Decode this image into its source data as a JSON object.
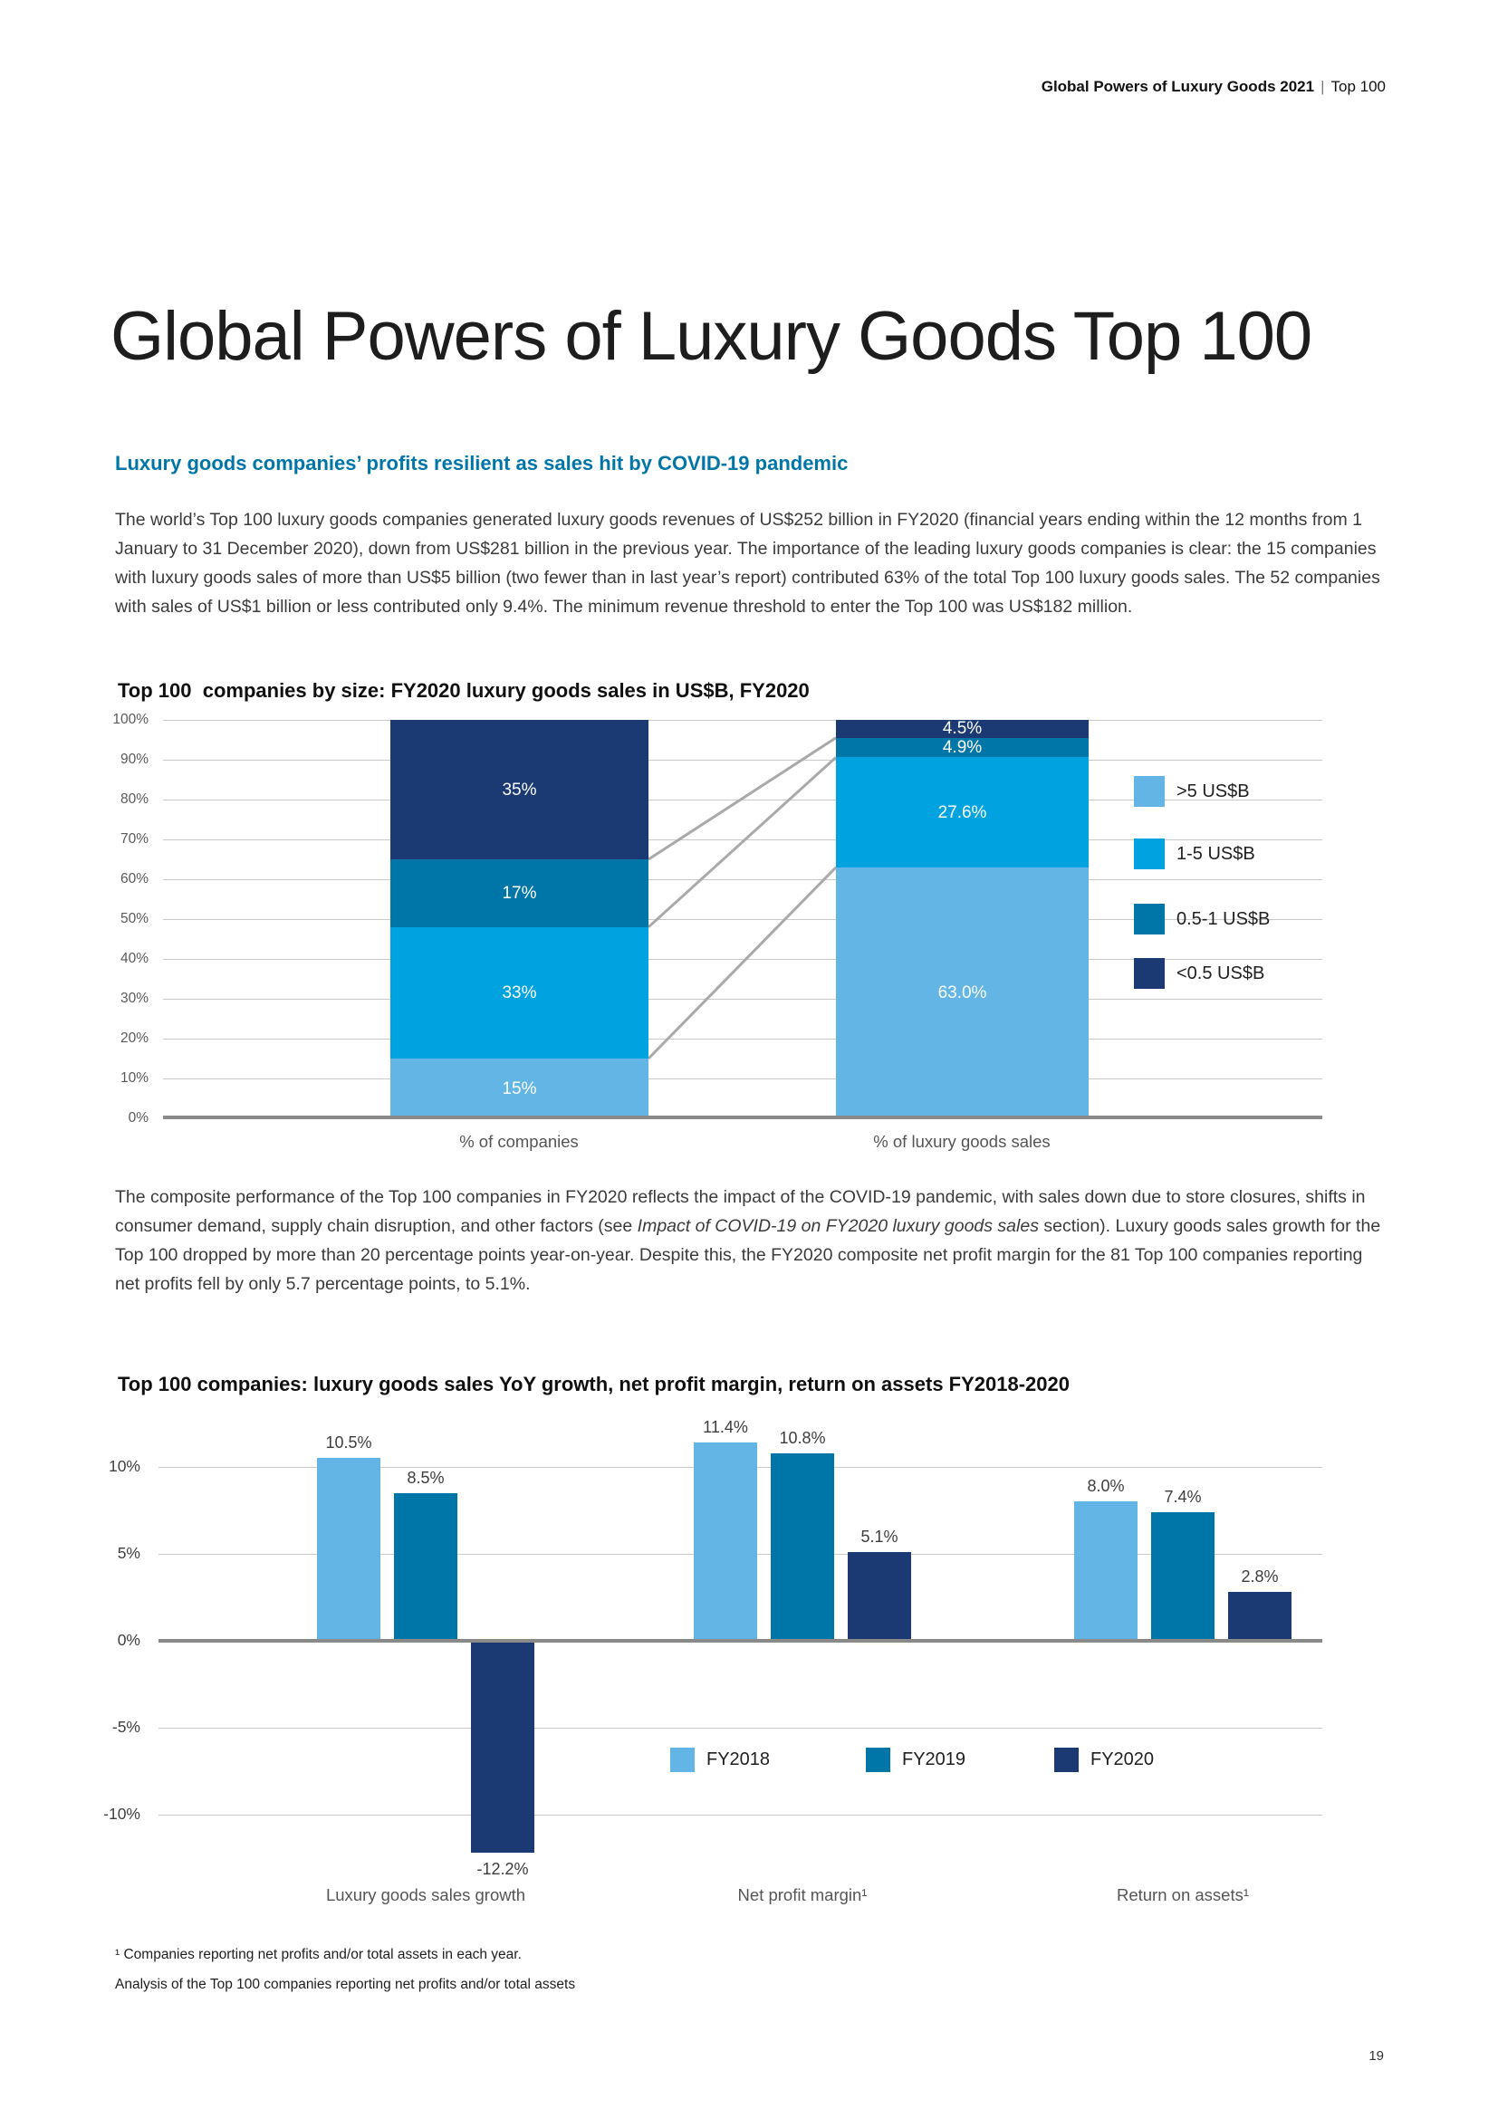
{
  "header": {
    "bold": "Global Powers of Luxury Goods 2021",
    "separator": "|",
    "regular": "Top 100"
  },
  "page_title": "Global Powers of Luxury Goods Top 100",
  "subtitle": "Luxury goods companies’ profits resilient as sales hit by COVID-19 pandemic",
  "para1": "The world’s Top 100 luxury goods companies generated luxury goods revenues of US$252 billion in FY2020 (financial years ending within the 12 months from 1 January to 31 December 2020), down from US$281 billion in the previous year. The importance of the leading luxury goods companies is clear: the 15 companies with luxury goods sales of more than US$5 billion (two fewer than in last year’s report) contributed 63% of the total Top 100 luxury goods sales. The 52 companies with sales of US$1 billion or less contributed only 9.4%. The minimum revenue threshold to enter the Top 100 was US$182 million.",
  "para2": {
    "part1": "The composite performance of the Top 100 companies in FY2020 reflects the impact of the COVID-19 pandemic, with sales down due to store closures, shifts in consumer demand, supply chain disruption, and other factors (see ",
    "italic": "Impact of COVID-19 on FY2020 luxury goods sales",
    "part2": " section). Luxury goods sales growth for the Top 100 dropped by more than 20 percentage points year-on-year. Despite this, the FY2020 composite net profit margin for the 81 Top 100 companies reporting net profits fell by only 5.7 percentage points, to 5.1%."
  },
  "colors": {
    "light_blue": "#62B5E5",
    "bright_blue": "#00A3E0",
    "ocean_blue": "#0076A8",
    "navy": "#1B3A74",
    "heading_blue": "#0076A8",
    "gridline": "#C9C9C9",
    "axis": "#8A8A8A",
    "connector": "#A9A9A9"
  },
  "footnotes": {
    "line1": "¹ Companies reporting net profits and/or total assets in each year.",
    "line2": "Analysis of the Top 100 companies reporting net profits and/or total assets"
  },
  "page_number": "19",
  "chart_data": [
    {
      "type": "bar",
      "variant": "stacked",
      "title": "Top 100  companies by size: FY2020 luxury goods sales in US$B, FY2020",
      "categories": [
        "% of companies",
        "% of luxury goods sales"
      ],
      "series": [
        {
          "name": ">5 US$B",
          "color": "#62B5E5",
          "values": [
            15,
            63.0
          ],
          "labels": [
            "15%",
            "63.0%"
          ]
        },
        {
          "name": "1-5 US$B",
          "color": "#00A3E0",
          "values": [
            33,
            27.6
          ],
          "labels": [
            "33%",
            "27.6%"
          ]
        },
        {
          "name": "0.5-1 US$B",
          "color": "#0076A8",
          "values": [
            17,
            4.9
          ],
          "labels": [
            "17%",
            "4.9%"
          ]
        },
        {
          "name": "<0.5 US$B",
          "color": "#1B3A74",
          "values": [
            35,
            4.5
          ],
          "labels": [
            "35%",
            "4.5%"
          ]
        }
      ],
      "ylim": [
        0,
        100
      ],
      "yticks": [
        {
          "v": 0,
          "label": "0%"
        },
        {
          "v": 10,
          "label": "10%"
        },
        {
          "v": 20,
          "label": "20%"
        },
        {
          "v": 30,
          "label": "30%"
        },
        {
          "v": 40,
          "label": "40%"
        },
        {
          "v": 50,
          "label": "50%"
        },
        {
          "v": 60,
          "label": "60%"
        },
        {
          "v": 70,
          "label": "70%"
        },
        {
          "v": 80,
          "label": "80%"
        },
        {
          "v": 90,
          "label": "90%"
        },
        {
          "v": 100,
          "label": "100%"
        }
      ],
      "grid": true,
      "legend_position": "right",
      "connector_lines": true
    },
    {
      "type": "bar",
      "variant": "grouped",
      "title": "Top 100 companies: luxury goods sales YoY growth, net profit margin, return on assets FY2018-2020",
      "categories": [
        "Luxury goods sales growth",
        "Net profit margin¹",
        "Return on assets¹"
      ],
      "series": [
        {
          "name": "FY2018",
          "color": "#62B5E5",
          "values": [
            10.5,
            11.4,
            8.0
          ],
          "labels": [
            "10.5%",
            "11.4%",
            "8.0%"
          ]
        },
        {
          "name": "FY2019",
          "color": "#0076A8",
          "values": [
            8.5,
            10.8,
            7.4
          ],
          "labels": [
            "8.5%",
            "10.8%",
            "7.4%"
          ]
        },
        {
          "name": "FY2020",
          "color": "#1B3A74",
          "values": [
            -12.2,
            5.1,
            2.8
          ],
          "labels": [
            "-12.2%",
            "5.1%",
            "2.8%"
          ]
        }
      ],
      "ylim": [
        -13,
        12.6
      ],
      "yticks": [
        {
          "v": 10,
          "label": "10%"
        },
        {
          "v": 5,
          "label": "5%"
        },
        {
          "v": 0,
          "label": "0%"
        },
        {
          "v": -5,
          "label": "-5%"
        },
        {
          "v": -10,
          "label": "-10%"
        }
      ],
      "grid": true,
      "legend_position": "inside-bottom-center"
    }
  ]
}
